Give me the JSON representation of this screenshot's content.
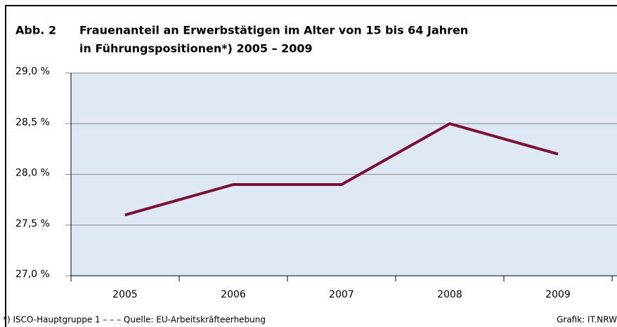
{
  "chart_data": {
    "type": "line",
    "label": "Abb. 2",
    "title": [
      "Frauenanteil an Erwerbstätigen im Alter von 15 bis 64 Jahren",
      "in Führungspositionen*) 2005 – 2009"
    ],
    "categories": [
      "2005",
      "2006",
      "2007",
      "2008",
      "2009"
    ],
    "values": [
      27.6,
      27.9,
      27.9,
      28.5,
      28.2
    ],
    "color": "#7b0f34",
    "ylim": [
      27,
      29
    ],
    "yticks": [
      {
        "value": 27,
        "label": "27,0 %"
      },
      {
        "value": 27.5,
        "label": "27,5 %"
      },
      {
        "value": 28,
        "label": "28,0 %"
      },
      {
        "value": 28.5,
        "label": "28,5 %"
      },
      {
        "value": 29,
        "label": "29,0 %"
      }
    ],
    "grid": true,
    "footnote": "*) ISCO-Hauptgruppe 1 – – – Quelle: EU-Arbeitskräfteerhebung",
    "credit": "Grafik: IT.NRW"
  }
}
